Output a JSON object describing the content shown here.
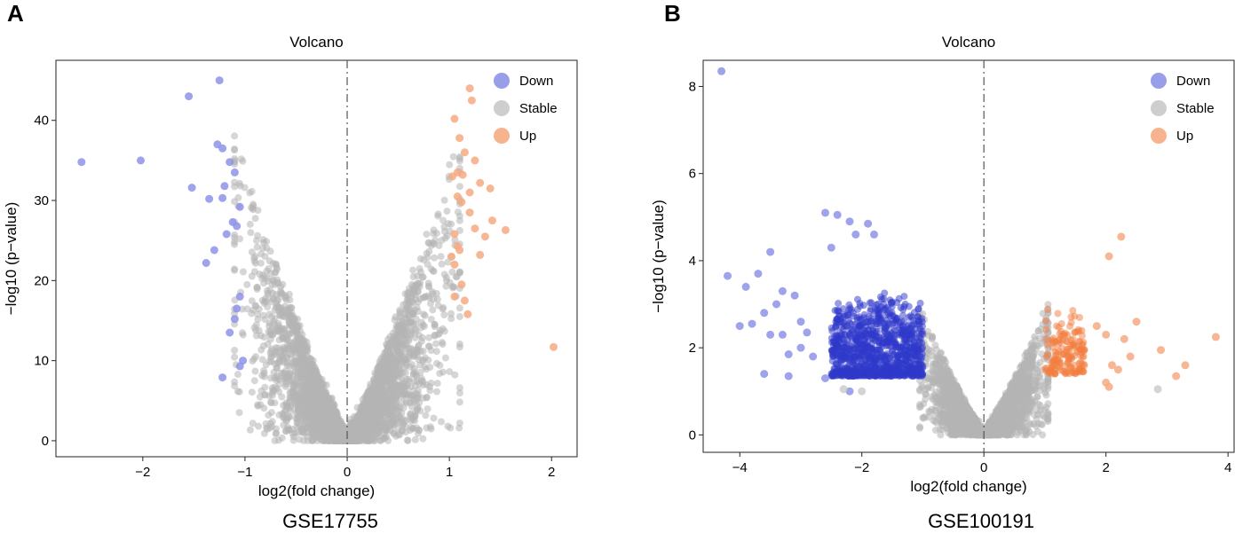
{
  "chart_data": [
    {
      "type": "scatter",
      "panel_letter": "A",
      "title": "Volcano",
      "xlabel": "log2(fold change)",
      "ylabel": "−log10 (p−value)",
      "caption": "GSE17755",
      "xlim": [
        -2.85,
        2.25
      ],
      "ylim": [
        -2,
        47.5
      ],
      "xticks": [
        -2,
        -1,
        0,
        1,
        2
      ],
      "xtick_labels": [
        "−2",
        "−1",
        "0",
        "1",
        "2"
      ],
      "yticks": [
        0,
        10,
        20,
        30,
        40
      ],
      "ytick_labels": [
        "0",
        "10",
        "20",
        "30",
        "40"
      ],
      "reference_line_x": 0,
      "legend": [
        {
          "label": "Down",
          "color": "#8e93e8"
        },
        {
          "label": "Stable",
          "color": "#c9c9c9"
        },
        {
          "label": "Up",
          "color": "#f6aa82"
        }
      ],
      "legend_position": "top-right",
      "stable_cloud": {
        "half_width_at_top": 1.05,
        "approx_max_y": 36,
        "note": "thousands of grey stable points in a V shape"
      },
      "series": [
        {
          "name": "Down",
          "color": "#8e93e8",
          "points": [
            [
              -2.6,
              34.8
            ],
            [
              -2.02,
              35
            ],
            [
              -1.55,
              43
            ],
            [
              -1.25,
              45
            ],
            [
              -1.52,
              31.6
            ],
            [
              -1.27,
              37
            ],
            [
              -1.22,
              36.5
            ],
            [
              -1.15,
              34.8
            ],
            [
              -1.1,
              33.5
            ],
            [
              -1.2,
              31.8
            ],
            [
              -1.35,
              30.2
            ],
            [
              -1.22,
              30.3
            ],
            [
              -1.05,
              29.2
            ],
            [
              -1.12,
              27.3
            ],
            [
              -1.08,
              26.8
            ],
            [
              -1.18,
              25.8
            ],
            [
              -1.3,
              23.8
            ],
            [
              -1.38,
              22.2
            ],
            [
              -1.05,
              18
            ],
            [
              -1.08,
              16.5
            ],
            [
              -1.1,
              15.2
            ],
            [
              -1.15,
              13.5
            ],
            [
              -1.02,
              10
            ],
            [
              -1.05,
              9.3
            ],
            [
              -1.22,
              7.9
            ]
          ]
        },
        {
          "name": "Up",
          "color": "#f6aa82",
          "points": [
            [
              1.2,
              44
            ],
            [
              1.22,
              42.5
            ],
            [
              1.05,
              40.2
            ],
            [
              1.1,
              37.8
            ],
            [
              1.15,
              36
            ],
            [
              1.25,
              35
            ],
            [
              1.08,
              33.5
            ],
            [
              1.13,
              33.2
            ],
            [
              1.03,
              33
            ],
            [
              1.3,
              32.2
            ],
            [
              1.4,
              31.5
            ],
            [
              1.2,
              31
            ],
            [
              1.08,
              30.5
            ],
            [
              1.12,
              29.8
            ],
            [
              1.2,
              28.5
            ],
            [
              1.42,
              27.5
            ],
            [
              1.25,
              26.5
            ],
            [
              1.55,
              26.3
            ],
            [
              1.05,
              25.8
            ],
            [
              1.35,
              25.5
            ],
            [
              1.08,
              24.3
            ],
            [
              1.1,
              23.8
            ],
            [
              1.3,
              23.2
            ],
            [
              1.02,
              23
            ],
            [
              1.05,
              22
            ],
            [
              1.12,
              19.5
            ],
            [
              1.05,
              18
            ],
            [
              1.15,
              17.5
            ],
            [
              1.18,
              15.8
            ],
            [
              2.02,
              11.7
            ]
          ]
        }
      ]
    },
    {
      "type": "scatter",
      "panel_letter": "B",
      "title": "Volcano",
      "xlabel": "log2(fold change)",
      "ylabel": "−log10 (p−value)",
      "caption": "GSE100191",
      "xlim": [
        -4.6,
        4.1
      ],
      "ylim": [
        -0.4,
        8.6
      ],
      "xticks": [
        -4,
        -2,
        0,
        2,
        4
      ],
      "xtick_labels": [
        "−4",
        "−2",
        "0",
        "2",
        "4"
      ],
      "yticks": [
        0,
        2,
        4,
        6,
        8
      ],
      "ytick_labels": [
        "0",
        "2",
        "4",
        "6",
        "8"
      ],
      "reference_line_x": 0,
      "legend": [
        {
          "label": "Down",
          "color": "#8e93e8"
        },
        {
          "label": "Stable",
          "color": "#c9c9c9"
        },
        {
          "label": "Up",
          "color": "#f6aa82"
        }
      ],
      "legend_position": "top-right",
      "stable_cloud": {
        "half_width_at_top": 1.0,
        "approx_max_y": 2.8,
        "note": "dense grey stable points forming a V shape"
      },
      "dense_down_region": {
        "x_range": [
          -2.5,
          -1.0
        ],
        "y_range": [
          1.35,
          3.3
        ],
        "color": "#2e37c9"
      },
      "dense_up_region": {
        "x_range": [
          1.0,
          1.65
        ],
        "y_range": [
          1.4,
          2.9
        ],
        "color": "#f27d3f"
      },
      "series": [
        {
          "name": "Down",
          "color": "#8e93e8",
          "points": [
            [
              -4.3,
              8.35
            ],
            [
              -2.6,
              5.1
            ],
            [
              -2.4,
              5.05
            ],
            [
              -2.2,
              4.9
            ],
            [
              -1.9,
              4.85
            ],
            [
              -1.8,
              4.6
            ],
            [
              -2.1,
              4.6
            ],
            [
              -2.5,
              4.3
            ],
            [
              -3.5,
              4.2
            ],
            [
              -3.7,
              3.7
            ],
            [
              -4.2,
              3.65
            ],
            [
              -3.9,
              3.4
            ],
            [
              -3.3,
              3.3
            ],
            [
              -3.1,
              3.2
            ],
            [
              -3.4,
              3.0
            ],
            [
              -3.6,
              2.8
            ],
            [
              -3.0,
              2.6
            ],
            [
              -4.0,
              2.5
            ],
            [
              -3.8,
              2.55
            ],
            [
              -3.3,
              2.3
            ],
            [
              -2.9,
              2.35
            ],
            [
              -3.5,
              2.3
            ],
            [
              -3.0,
              2.0
            ],
            [
              -3.2,
              1.85
            ],
            [
              -2.8,
              1.8
            ],
            [
              -3.6,
              1.4
            ],
            [
              -3.2,
              1.35
            ],
            [
              -2.6,
              1.3
            ],
            [
              -2.2,
              1.0
            ]
          ]
        },
        {
          "name": "Up",
          "color": "#f6aa82",
          "points": [
            [
              2.25,
              4.55
            ],
            [
              2.05,
              4.1
            ],
            [
              2.5,
              2.6
            ],
            [
              1.85,
              2.5
            ],
            [
              2.0,
              2.3
            ],
            [
              2.3,
              2.2
            ],
            [
              2.4,
              1.8
            ],
            [
              2.1,
              1.6
            ],
            [
              2.2,
              1.5
            ],
            [
              2.9,
              1.95
            ],
            [
              3.8,
              2.25
            ],
            [
              3.3,
              1.6
            ],
            [
              3.15,
              1.35
            ],
            [
              2.0,
              1.2
            ],
            [
              2.05,
              1.1
            ]
          ]
        },
        {
          "name": "Stable",
          "color": "#c9c9c9",
          "points": [
            [
              2.85,
              1.05
            ],
            [
              -2.0,
              1.0
            ],
            [
              -2.3,
              1.05
            ]
          ]
        }
      ]
    }
  ]
}
